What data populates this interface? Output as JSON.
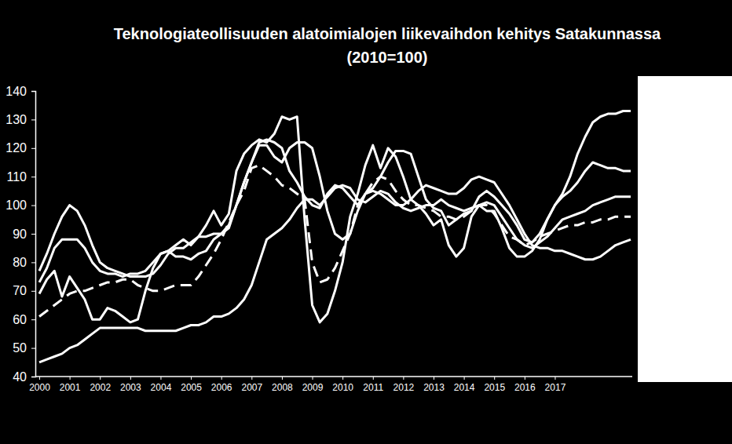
{
  "chart_data": {
    "type": "line",
    "title": "Teknologiateollisuuden alatoimialojen liikevaihdon kehitys Satakunnassa",
    "subtitle": "(2010=100)",
    "categories": [
      "2000",
      null,
      null,
      null,
      "2001",
      null,
      null,
      null,
      "2002",
      null,
      null,
      null,
      "2003",
      null,
      null,
      null,
      "2004",
      null,
      null,
      null,
      "2005",
      null,
      null,
      null,
      "2006",
      null,
      null,
      null,
      "2007",
      null,
      null,
      null,
      "2008",
      null,
      null,
      null,
      "2009",
      null,
      null,
      null,
      "2010",
      null,
      null,
      null,
      "2011",
      null,
      null,
      null,
      "2012",
      null,
      null,
      null,
      "2013",
      null,
      null,
      null,
      "2014",
      null,
      null,
      null,
      "2015",
      null,
      null,
      null,
      "2016",
      null,
      null,
      null,
      "2017",
      null,
      null,
      null,
      null,
      null,
      null,
      null,
      null,
      null,
      null
    ],
    "ylim": [
      40,
      140
    ],
    "yticks": [
      40,
      50,
      60,
      70,
      80,
      90,
      100,
      110,
      120,
      130,
      140
    ],
    "grid": false,
    "series": [
      {
        "color": "#ffffff",
        "line_style": "solid",
        "values": [
          45,
          46,
          47,
          48,
          50,
          51,
          53,
          55,
          57,
          57,
          57,
          57,
          57,
          57,
          56,
          56,
          56,
          56,
          56,
          57,
          58,
          58,
          59,
          61,
          61,
          62,
          64,
          67,
          72,
          80,
          88,
          90,
          92,
          95,
          99,
          102,
          102,
          100,
          103,
          106,
          107,
          106,
          102,
          101,
          103,
          105,
          104,
          101,
          99,
          98,
          99,
          100,
          100,
          102,
          100,
          99,
          98,
          99,
          100,
          101,
          100,
          96,
          92,
          88,
          86,
          85,
          87,
          89,
          92,
          95,
          96,
          97,
          98,
          100,
          101,
          102,
          103,
          103,
          103
        ]
      },
      {
        "color": "#ffffff",
        "line_style": "dashed",
        "values": [
          61,
          63,
          65,
          67,
          69,
          70,
          70,
          71,
          72,
          73,
          73,
          74,
          74,
          72,
          71,
          70,
          70,
          71,
          72,
          72,
          72,
          75,
          79,
          83,
          88,
          94,
          100,
          105,
          113,
          114,
          112,
          110,
          107,
          106,
          104,
          102,
          80,
          73,
          74,
          78,
          84,
          90,
          100,
          104,
          108,
          110,
          109,
          105,
          102,
          100,
          100,
          99,
          98,
          96,
          96,
          95,
          96,
          98,
          100,
          100,
          97,
          93,
          89,
          88,
          86,
          87,
          89,
          90,
          91,
          92,
          93,
          93,
          94,
          94,
          95,
          95,
          96,
          96,
          96
        ]
      },
      {
        "color": "#ffffff",
        "line_style": "solid",
        "values": [
          69,
          74,
          77,
          68,
          75,
          71,
          67,
          60,
          60,
          64,
          63,
          61,
          59,
          60,
          70,
          78,
          83,
          84,
          86,
          88,
          86,
          89,
          93,
          98,
          93,
          97,
          112,
          118,
          121,
          123,
          122,
          125,
          131,
          130,
          131,
          95,
          65,
          59,
          62,
          70,
          80,
          96,
          104,
          114,
          121,
          113,
          120,
          117,
          110,
          102,
          100,
          97,
          93,
          95,
          86,
          82,
          85,
          96,
          100,
          98,
          98,
          92,
          85,
          82,
          82,
          84,
          88,
          95,
          100,
          104,
          110,
          118,
          124,
          129,
          131,
          132,
          132,
          133,
          133
        ]
      },
      {
        "color": "#ffffff",
        "line_style": "solid",
        "values": [
          73,
          78,
          85,
          88,
          88,
          88,
          85,
          80,
          77,
          76,
          76,
          75,
          76,
          76,
          77,
          80,
          83,
          84,
          82,
          82,
          81,
          83,
          84,
          88,
          90,
          92,
          100,
          108,
          115,
          121,
          121,
          117,
          115,
          120,
          122,
          122,
          120,
          110,
          98,
          90,
          88,
          90,
          98,
          104,
          106,
          110,
          115,
          119,
          119,
          118,
          110,
          102,
          99,
          98,
          93,
          95,
          97,
          98,
          103,
          105,
          103,
          100,
          97,
          93,
          88,
          87,
          90,
          95,
          100,
          103,
          105,
          108,
          112,
          115,
          114,
          113,
          113,
          112,
          112
        ]
      },
      {
        "color": "#ffffff",
        "line_style": "solid",
        "values": [
          77,
          83,
          90,
          96,
          100,
          98,
          93,
          86,
          80,
          78,
          77,
          76,
          75,
          75,
          75,
          76,
          79,
          83,
          85,
          85,
          87,
          89,
          89,
          90,
          90,
          93,
          100,
          108,
          115,
          122,
          123,
          122,
          120,
          112,
          108,
          103,
          100,
          99,
          104,
          107,
          106,
          103,
          100,
          104,
          105,
          104,
          102,
          100,
          100,
          102,
          105,
          107,
          106,
          105,
          104,
          104,
          106,
          109,
          110,
          109,
          108,
          104,
          100,
          95,
          90,
          86,
          85,
          85,
          84,
          84,
          83,
          82,
          81,
          81,
          82,
          84,
          86,
          87,
          88
        ]
      }
    ]
  }
}
